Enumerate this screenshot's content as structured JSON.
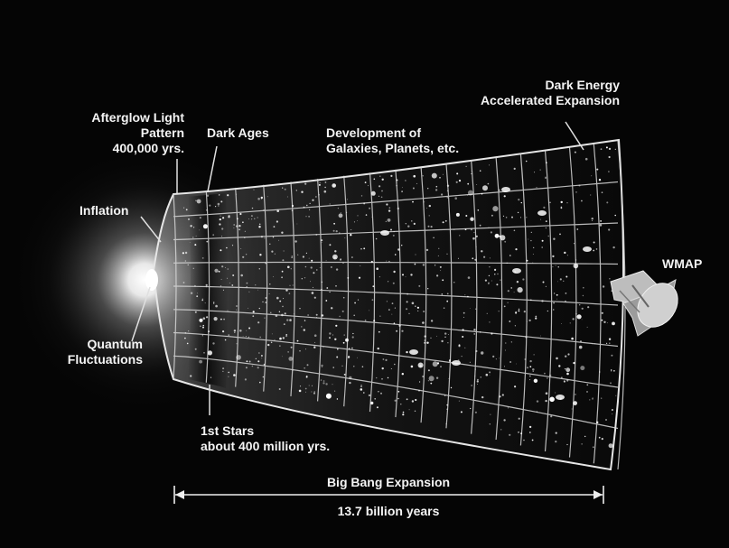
{
  "labels": {
    "afterglow": [
      "Afterglow Light",
      "Pattern",
      "400,000 yrs."
    ],
    "inflation": "Inflation",
    "quantum": [
      "Quantum",
      "Fluctuations"
    ],
    "dark_ages": "Dark Ages",
    "development": [
      "Development of",
      "Galaxies, Planets, etc."
    ],
    "dark_energy": [
      "Dark Energy",
      "Accelerated Expansion"
    ],
    "wmap": "WMAP",
    "first_stars": [
      "1st Stars",
      "about 400 million yrs."
    ],
    "big_bang": "Big Bang Expansion",
    "age": "13.7 billion years"
  },
  "colors": {
    "background": "#050505",
    "grid": "#d8d8d8",
    "text": "#f4f4f4"
  }
}
